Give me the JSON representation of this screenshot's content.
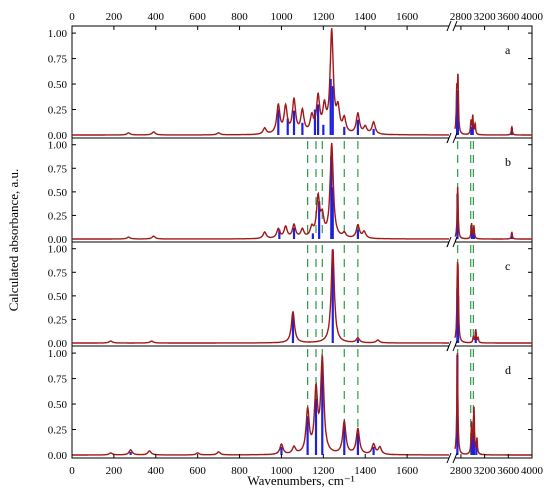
{
  "chart_data": {
    "type": "line",
    "ylabel": "Calculated absorbance, a.u.",
    "xlabel": "Wavenumbers, cm⁻¹",
    "x_break": {
      "from": 1800,
      "to": 2700
    },
    "xlim_low": [
      0,
      1800
    ],
    "xlim_high": [
      2700,
      4000
    ],
    "x_ticks_low": [
      0,
      200,
      400,
      600,
      800,
      1000,
      1200,
      1400,
      1600
    ],
    "x_ticks_high": [
      2800,
      3200,
      3600,
      4000
    ],
    "ylim": [
      0,
      1.05
    ],
    "y_ticks": [
      "0.00",
      "0.25",
      "0.50",
      "0.75",
      "1.00"
    ],
    "dashed_reference_lines": [
      1125,
      1165,
      1195,
      1300,
      1365,
      2745,
      2965,
      3010
    ],
    "colors": {
      "envelope": "#a01818",
      "sticks": "#1f1fe0",
      "reference": "#2e9a4a"
    },
    "panels": [
      {
        "label": "a",
        "envelope_peaks": [
          [
            270,
            0.02
          ],
          [
            390,
            0.03
          ],
          [
            700,
            0.02
          ],
          [
            920,
            0.06
          ],
          [
            985,
            0.28
          ],
          [
            1020,
            0.26
          ],
          [
            1060,
            0.33
          ],
          [
            1100,
            0.22
          ],
          [
            1145,
            0.16
          ],
          [
            1175,
            0.35
          ],
          [
            1205,
            0.24
          ],
          [
            1240,
            1.0
          ],
          [
            1270,
            0.22
          ],
          [
            1300,
            0.14
          ],
          [
            1365,
            0.2
          ],
          [
            1400,
            0.07
          ],
          [
            1440,
            0.12
          ],
          [
            2730,
            0.4
          ],
          [
            2750,
            0.52
          ],
          [
            2970,
            0.13
          ],
          [
            3000,
            0.18
          ],
          [
            3040,
            0.1
          ],
          [
            3660,
            0.08
          ]
        ],
        "sticks": [
          [
            985,
            0.25
          ],
          [
            1030,
            0.16
          ],
          [
            1060,
            0.24
          ],
          [
            1100,
            0.12
          ],
          [
            1160,
            0.25
          ],
          [
            1175,
            0.3
          ],
          [
            1200,
            0.1
          ],
          [
            1235,
            0.55
          ],
          [
            1245,
            0.48
          ],
          [
            1300,
            0.08
          ],
          [
            1365,
            0.15
          ],
          [
            1440,
            0.06
          ],
          [
            2735,
            0.34
          ],
          [
            2750,
            0.44
          ],
          [
            2975,
            0.08
          ],
          [
            3000,
            0.12
          ],
          [
            3660,
            0.07
          ]
        ]
      },
      {
        "label": "b",
        "envelope_peaks": [
          [
            270,
            0.02
          ],
          [
            390,
            0.03
          ],
          [
            920,
            0.07
          ],
          [
            985,
            0.1
          ],
          [
            1020,
            0.12
          ],
          [
            1060,
            0.14
          ],
          [
            1100,
            0.09
          ],
          [
            1145,
            0.1
          ],
          [
            1175,
            0.42
          ],
          [
            1195,
            0.2
          ],
          [
            1240,
            1.0
          ],
          [
            1300,
            0.05
          ],
          [
            1365,
            0.14
          ],
          [
            1395,
            0.07
          ],
          [
            2745,
            0.55
          ],
          [
            2980,
            0.16
          ],
          [
            3020,
            0.12
          ],
          [
            3660,
            0.07
          ]
        ],
        "sticks": [
          [
            990,
            0.1
          ],
          [
            1060,
            0.12
          ],
          [
            1150,
            0.06
          ],
          [
            1180,
            0.4
          ],
          [
            1238,
            0.88
          ],
          [
            1245,
            0.55
          ],
          [
            1365,
            0.1
          ],
          [
            2742,
            0.48
          ],
          [
            2985,
            0.09
          ],
          [
            3020,
            0.07
          ],
          [
            3660,
            0.06
          ]
        ]
      },
      {
        "label": "c",
        "envelope_peaks": [
          [
            185,
            0.02
          ],
          [
            380,
            0.02
          ],
          [
            1055,
            0.33
          ],
          [
            1245,
            1.0
          ],
          [
            1365,
            0.05
          ],
          [
            1460,
            0.03
          ],
          [
            2740,
            0.6
          ],
          [
            2752,
            0.55
          ],
          [
            3010,
            0.06
          ],
          [
            3050,
            0.14
          ],
          [
            3090,
            0.05
          ]
        ],
        "sticks": [
          [
            1055,
            0.3
          ],
          [
            1245,
            0.98
          ],
          [
            1365,
            0.04
          ],
          [
            2740,
            0.58
          ],
          [
            2752,
            0.5
          ],
          [
            3050,
            0.12
          ]
        ]
      },
      {
        "label": "d",
        "envelope_peaks": [
          [
            185,
            0.02
          ],
          [
            280,
            0.05
          ],
          [
            370,
            0.04
          ],
          [
            600,
            0.02
          ],
          [
            700,
            0.03
          ],
          [
            1000,
            0.1
          ],
          [
            1060,
            0.07
          ],
          [
            1125,
            0.42
          ],
          [
            1165,
            0.6
          ],
          [
            1195,
            0.92
          ],
          [
            1300,
            0.32
          ],
          [
            1365,
            0.25
          ],
          [
            1440,
            0.1
          ],
          [
            1470,
            0.07
          ],
          [
            2740,
            1.0
          ],
          [
            2980,
            0.3
          ],
          [
            3020,
            0.45
          ],
          [
            3070,
            0.15
          ]
        ],
        "sticks": [
          [
            280,
            0.03
          ],
          [
            1000,
            0.08
          ],
          [
            1125,
            0.38
          ],
          [
            1165,
            0.55
          ],
          [
            1195,
            0.9
          ],
          [
            1300,
            0.28
          ],
          [
            1365,
            0.22
          ],
          [
            1440,
            0.08
          ],
          [
            2740,
            0.98
          ],
          [
            2985,
            0.22
          ],
          [
            3020,
            0.38
          ],
          [
            3060,
            0.12
          ]
        ]
      }
    ]
  }
}
